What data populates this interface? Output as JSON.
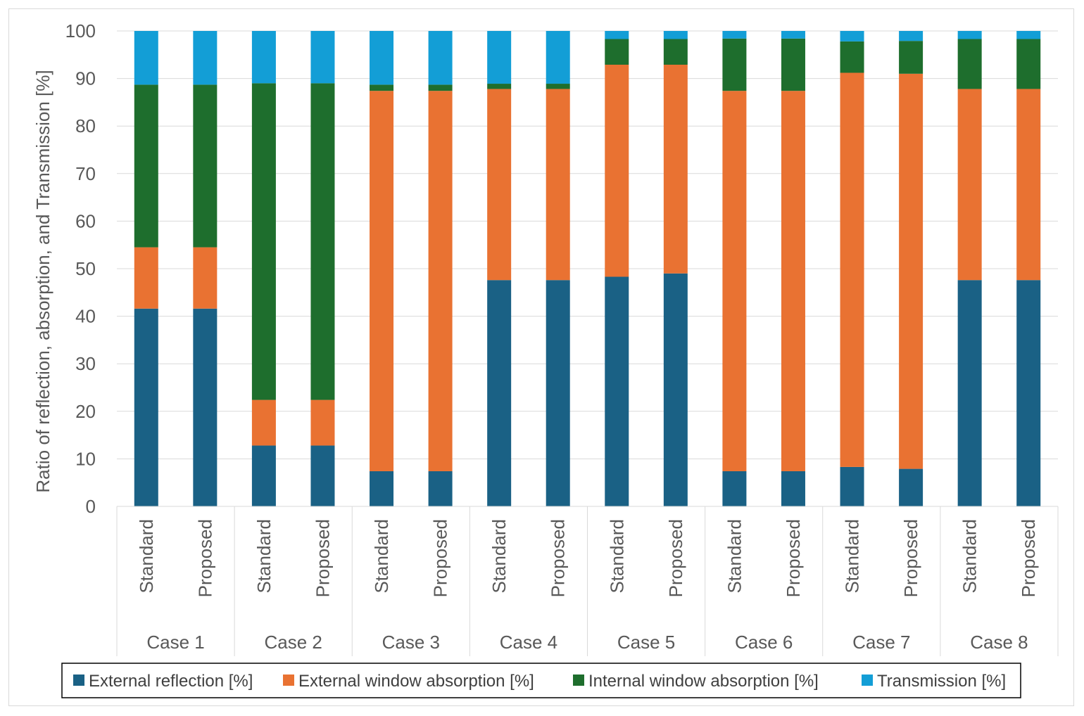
{
  "chart_data": {
    "type": "bar",
    "stacked": true,
    "title": "",
    "ylabel": "Ratio of reflection, absorption, and Transmission [%]",
    "xlabel": "",
    "ylim": [
      0,
      100
    ],
    "yticks": [
      0,
      10,
      20,
      30,
      40,
      50,
      60,
      70,
      80,
      90,
      100
    ],
    "ytick_labels": [
      "0",
      "10",
      "20",
      "30",
      "40",
      "50",
      "60",
      "70",
      "80",
      "90",
      "100"
    ],
    "grid": true,
    "legend_position": "bottom",
    "groups": [
      "Case 1",
      "Case 2",
      "Case 3",
      "Case 4",
      "Case 5",
      "Case 6",
      "Case 7",
      "Case 8"
    ],
    "subcategories": [
      "Standard",
      "Proposed"
    ],
    "series": [
      {
        "name": "External reflection [%]",
        "color": "#1a6185",
        "values": [
          41.6,
          41.6,
          12.8,
          12.8,
          7.4,
          7.4,
          47.6,
          47.6,
          48.3,
          49.0,
          7.4,
          7.4,
          8.3,
          7.9,
          47.6,
          47.6
        ]
      },
      {
        "name": "External window absorption [%]",
        "color": "#e97232",
        "values": [
          12.9,
          12.9,
          9.6,
          9.6,
          80.0,
          80.0,
          40.2,
          40.2,
          44.6,
          43.9,
          80.0,
          80.0,
          82.9,
          83.1,
          40.2,
          40.2
        ]
      },
      {
        "name": "Internal window absorption [%]",
        "color": "#1e6e2d",
        "values": [
          34.2,
          34.2,
          66.6,
          66.6,
          1.3,
          1.3,
          1.1,
          1.1,
          5.4,
          5.4,
          11.0,
          11.0,
          6.6,
          6.9,
          10.5,
          10.5
        ]
      },
      {
        "name": "Transmission [%]",
        "color": "#139ed6",
        "values": [
          11.3,
          11.3,
          11.0,
          11.0,
          11.3,
          11.3,
          11.1,
          11.1,
          1.7,
          1.7,
          1.6,
          1.6,
          2.2,
          2.1,
          1.7,
          1.7
        ]
      }
    ]
  }
}
